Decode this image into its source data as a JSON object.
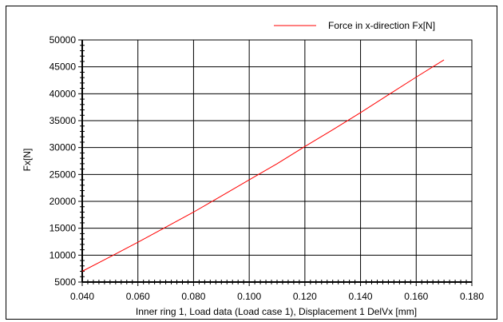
{
  "chart_data": {
    "type": "line",
    "title": "",
    "xlabel": "Inner ring 1, Load data (Load case 1), Displacement 1 DelVx [mm]",
    "ylabel": "Fx[N]",
    "xlim": [
      0.04,
      0.18
    ],
    "ylim": [
      5000,
      50000
    ],
    "x_ticks": [
      "0.040",
      "0.060",
      "0.080",
      "0.100",
      "0.120",
      "0.140",
      "0.160",
      "0.180"
    ],
    "y_ticks": [
      "5000",
      "10000",
      "15000",
      "20000",
      "25000",
      "30000",
      "35000",
      "40000",
      "45000",
      "50000"
    ],
    "grid": true,
    "legend_position": "top-right",
    "series": [
      {
        "name": "Force in x-direction Fx[N]",
        "color": "#ff0000",
        "x": [
          0.04,
          0.05,
          0.06,
          0.07,
          0.08,
          0.09,
          0.1,
          0.11,
          0.12,
          0.13,
          0.14,
          0.15,
          0.16,
          0.17
        ],
        "y": [
          7000,
          9700,
          12400,
          15200,
          18000,
          21000,
          24000,
          27000,
          30200,
          33300,
          36500,
          39800,
          43100,
          46300
        ]
      }
    ]
  }
}
